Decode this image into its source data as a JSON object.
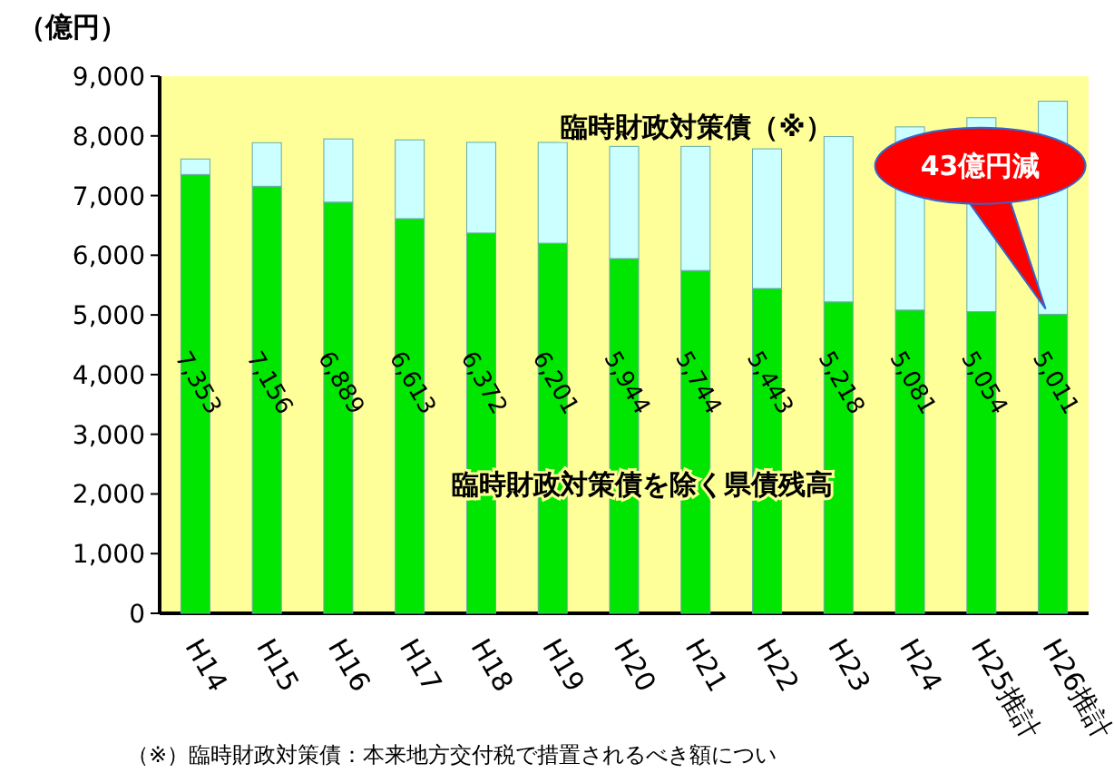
{
  "chart_data": {
    "type": "bar",
    "stacked": true,
    "ylabel": "（億円）",
    "categories": [
      "H14",
      "H15",
      "H16",
      "H17",
      "H18",
      "H19",
      "H20",
      "H21",
      "H22",
      "H23",
      "H24",
      "H25推計",
      "H26推計"
    ],
    "series": [
      {
        "name": "臨時財政対策債を除く県債残高",
        "color": "#00e600",
        "values": [
          7353,
          7156,
          6889,
          6613,
          6372,
          6201,
          5944,
          5744,
          5443,
          5218,
          5081,
          5054,
          5011
        ],
        "value_labels": [
          "7,353",
          "7,156",
          "6,889",
          "6,613",
          "6,372",
          "6,201",
          "5,944",
          "5,744",
          "5,443",
          "5,218",
          "5,081",
          "5,054",
          "5,011"
        ]
      },
      {
        "name": "臨時財政対策債（※）",
        "color": "#ccffff",
        "values": [
          260,
          730,
          1060,
          1320,
          1520,
          1690,
          1880,
          2080,
          2340,
          2770,
          3070,
          3250,
          3570
        ]
      }
    ],
    "ylim": [
      0,
      9000
    ],
    "yticks": [
      0,
      {
        "value": 1000,
        "label": "1,000"
      },
      {
        "value": 2000,
        "label": "2,000"
      },
      {
        "value": 3000,
        "label": "3,000"
      },
      {
        "value": 4000,
        "label": "4,000"
      },
      {
        "value": 5000,
        "label": "5,000"
      },
      {
        "value": 6000,
        "label": "6,000"
      },
      {
        "value": 7000,
        "label": "7,000"
      },
      {
        "value": 8000,
        "label": "8,000"
      },
      {
        "value": 9000,
        "label": "9,000"
      }
    ],
    "annotations": [
      "43億円減",
      "（※）臨時財政対策債：本来地方交付税で措置されるべき額につい"
    ]
  }
}
